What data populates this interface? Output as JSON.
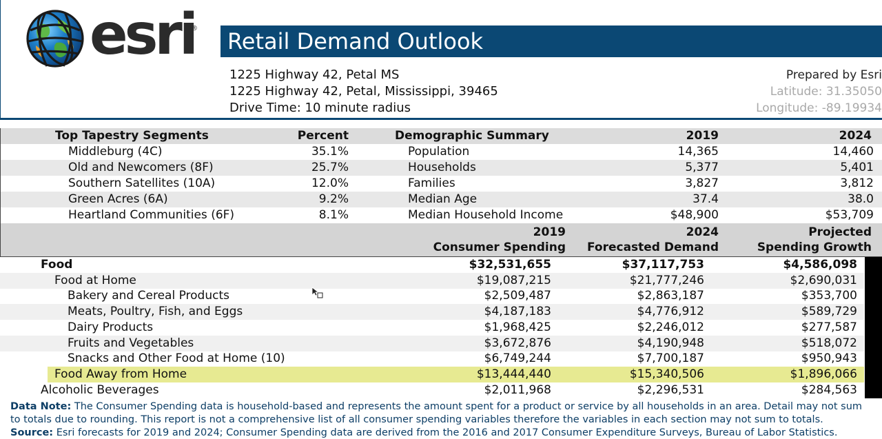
{
  "logo": {
    "word": "esri",
    "reg": "®"
  },
  "title": "Retail Demand Outlook",
  "address": {
    "line1": "1225 Highway 42, Petal MS",
    "line2": "1225 Highway 42, Petal, Mississippi, 39465",
    "line3": "Drive Time: 10 minute radius"
  },
  "meta": {
    "prepared": "Prepared by Esri",
    "latitude": "Latitude: 31.35050",
    "longitude": "Longitude: -89.19934"
  },
  "summary": {
    "headers": {
      "segments": "Top Tapestry Segments",
      "percent": "Percent",
      "demo": "Demographic Summary",
      "y2019": "2019",
      "y2024": "2024"
    },
    "rows": [
      {
        "segment": "Middleburg (4C)",
        "percent": "35.1%",
        "demo": "Population",
        "v2019": "14,365",
        "v2024": "14,460"
      },
      {
        "segment": "Old and Newcomers (8F)",
        "percent": "25.7%",
        "demo": "Households",
        "v2019": "5,377",
        "v2024": "5,401"
      },
      {
        "segment": "Southern Satellites (10A)",
        "percent": "12.0%",
        "demo": "Families",
        "v2019": "3,827",
        "v2024": "3,812"
      },
      {
        "segment": "Green Acres (6A)",
        "percent": "9.2%",
        "demo": "Median Age",
        "v2019": "37.4",
        "v2024": "38.0"
      },
      {
        "segment": "Heartland Communities (6F)",
        "percent": "8.1%",
        "demo": "Median Household Income",
        "v2019": "$48,900",
        "v2024": "$53,709"
      }
    ]
  },
  "spending_headers": {
    "c1_top": "2019",
    "c1_bottom": "Consumer Spending",
    "c2_top": "2024",
    "c2_bottom": "Forecasted Demand",
    "c3_top": "Projected",
    "c3_bottom": "Spending Growth"
  },
  "spending_rows": [
    {
      "label": "Food",
      "level": 0,
      "v2019": "$32,531,655",
      "v2024": "$37,117,753",
      "growth": "$4,586,098"
    },
    {
      "label": "Food at Home",
      "level": 1,
      "v2019": "$19,087,215",
      "v2024": "$21,777,246",
      "growth": "$2,690,031"
    },
    {
      "label": "Bakery and Cereal Products",
      "level": 2,
      "v2019": "$2,509,487",
      "v2024": "$2,863,187",
      "growth": "$353,700"
    },
    {
      "label": "Meats, Poultry, Fish, and Eggs",
      "level": 2,
      "v2019": "$4,187,183",
      "v2024": "$4,776,912",
      "growth": "$589,729"
    },
    {
      "label": "Dairy Products",
      "level": 2,
      "v2019": "$1,968,425",
      "v2024": "$2,246,012",
      "growth": "$277,587"
    },
    {
      "label": "Fruits and Vegetables",
      "level": 2,
      "v2019": "$3,672,876",
      "v2024": "$4,190,948",
      "growth": "$518,072"
    },
    {
      "label": "Snacks and Other Food at Home (10)",
      "level": 2,
      "v2019": "$6,749,244",
      "v2024": "$7,700,187",
      "growth": "$950,943"
    },
    {
      "label": "Food Away from Home",
      "level": 1,
      "v2019": "$13,444,440",
      "v2024": "$15,340,506",
      "growth": "$1,896,066"
    },
    {
      "label": "Alcoholic Beverages",
      "level": 0,
      "v2019": "$2,011,968",
      "v2024": "$2,296,531",
      "growth": "$284,563"
    }
  ],
  "notes": {
    "data_note_label": "Data Note:",
    "data_note_line1": " The Consumer Spending data is household-based and represents the amount spent for a product or service by all households in an area. Detail may not sum",
    "data_note_line2": "to totals due to rounding.  This report is not a comprehensive list of all consumer spending variables therefore the variables in each section may not sum to totals.",
    "source_label": "Source:",
    "source_text": " Esri forecasts for 2019 and 2024; Consumer Spending data are derived from the 2016 and 2017 Consumer Expenditure Surveys, Bureau of Labor Statistics."
  },
  "colors": {
    "title_bar": "#0b4874",
    "highlight_row": "#e7ea92",
    "note_text": "#0d3e66"
  }
}
